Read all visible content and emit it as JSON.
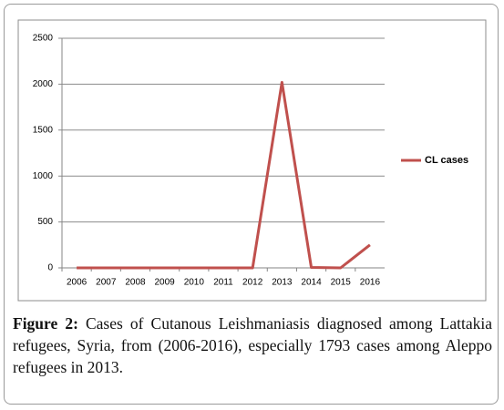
{
  "chart_data": {
    "type": "line",
    "categories": [
      "2006",
      "2007",
      "2008",
      "2009",
      "2010",
      "2011",
      "2012",
      "2013",
      "2014",
      "2015",
      "2016"
    ],
    "series": [
      {
        "name": "CL cases",
        "color": "#c0504d",
        "values": [
          0,
          0,
          0,
          0,
          0,
          0,
          0,
          2020,
          5,
          0,
          250
        ]
      }
    ],
    "ylim": [
      0,
      2500
    ],
    "yticks": [
      0,
      500,
      1000,
      1500,
      2000,
      2500
    ],
    "grid": true,
    "legend": "right"
  },
  "caption": {
    "label": "Figure 2:",
    "text": "Cases of Cutanous Leishmaniasis diagnosed among Lattakia refugees, Syria, from (2006-2016), especially 1793 cases among Aleppo refugees in 2013."
  }
}
